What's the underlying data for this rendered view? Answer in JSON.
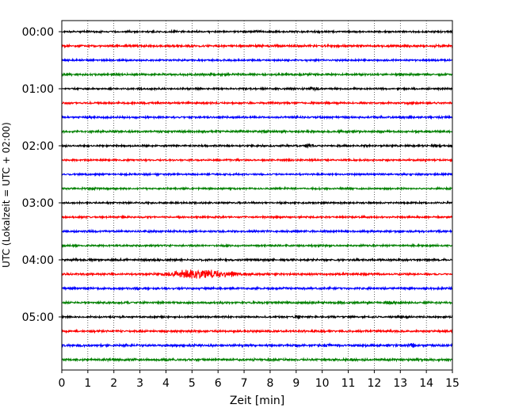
{
  "chart_data": {
    "type": "line",
    "title": "",
    "xlabel": "Zeit  [min]",
    "ylabel": "UTC (Lokalzeit = UTC + 02:00)",
    "xlim": [
      0,
      15
    ],
    "x_ticks": [
      "0",
      "1",
      "2",
      "3",
      "4",
      "5",
      "6",
      "7",
      "8",
      "9",
      "10",
      "11",
      "12",
      "13",
      "14",
      "15"
    ],
    "y_tick_labels": [
      "00:00",
      "01:00",
      "02:00",
      "03:00",
      "04:00",
      "05:00"
    ],
    "y_tick_trace_index": [
      0,
      4,
      8,
      12,
      16,
      20
    ],
    "grid": "vertical dotted at each minute",
    "trace_interval_minutes": 15,
    "trace_count": 24,
    "color_cycle": [
      "#000000",
      "#ff0000",
      "#0000ff",
      "#008000"
    ],
    "traces": [
      {
        "start": "00:00",
        "amplitude": 0.25,
        "events": [
          {
            "t": 7.5,
            "a": 0.45
          }
        ]
      },
      {
        "start": "00:15",
        "amplitude": 0.3,
        "events": [
          {
            "t": 13.3,
            "a": 0.4
          }
        ]
      },
      {
        "start": "00:30",
        "amplitude": 0.25,
        "events": []
      },
      {
        "start": "00:45",
        "amplitude": 0.3,
        "events": []
      },
      {
        "start": "01:00",
        "amplitude": 0.25,
        "events": [
          {
            "t": 9.7,
            "a": 0.55
          }
        ]
      },
      {
        "start": "01:15",
        "amplitude": 0.28,
        "events": []
      },
      {
        "start": "01:30",
        "amplitude": 0.28,
        "events": []
      },
      {
        "start": "01:45",
        "amplitude": 0.3,
        "events": []
      },
      {
        "start": "02:00",
        "amplitude": 0.25,
        "events": [
          {
            "t": 9.5,
            "a": 0.65
          },
          {
            "t": 11.6,
            "a": 0.45
          },
          {
            "t": 14.4,
            "a": 0.4
          }
        ]
      },
      {
        "start": "02:15",
        "amplitude": 0.25,
        "events": []
      },
      {
        "start": "02:30",
        "amplitude": 0.25,
        "events": []
      },
      {
        "start": "02:45",
        "amplitude": 0.25,
        "events": [
          {
            "t": 1.2,
            "a": 0.4
          }
        ]
      },
      {
        "start": "03:00",
        "amplitude": 0.25,
        "events": []
      },
      {
        "start": "03:15",
        "amplitude": 0.25,
        "events": []
      },
      {
        "start": "03:30",
        "amplitude": 0.28,
        "events": []
      },
      {
        "start": "03:45",
        "amplitude": 0.25,
        "events": []
      },
      {
        "start": "04:00",
        "amplitude": 0.28,
        "events": []
      },
      {
        "start": "04:15",
        "amplitude": 0.28,
        "events": [
          {
            "t": 5.3,
            "a": 0.9,
            "w": 1.2
          }
        ]
      },
      {
        "start": "04:30",
        "amplitude": 0.3,
        "events": [
          {
            "t": 2.9,
            "a": 0.5
          }
        ]
      },
      {
        "start": "04:45",
        "amplitude": 0.3,
        "events": [
          {
            "t": 12.6,
            "a": 0.6
          }
        ]
      },
      {
        "start": "05:00",
        "amplitude": 0.25,
        "events": [
          {
            "t": 9.1,
            "a": 0.5
          }
        ]
      },
      {
        "start": "05:15",
        "amplitude": 0.3,
        "events": [
          {
            "t": 9.8,
            "a": 0.5
          }
        ]
      },
      {
        "start": "05:30",
        "amplitude": 0.32,
        "events": [
          {
            "t": 10.2,
            "a": 0.6
          },
          {
            "t": 13.4,
            "a": 0.75
          }
        ]
      },
      {
        "start": "05:45",
        "amplitude": 0.32,
        "events": []
      }
    ]
  }
}
